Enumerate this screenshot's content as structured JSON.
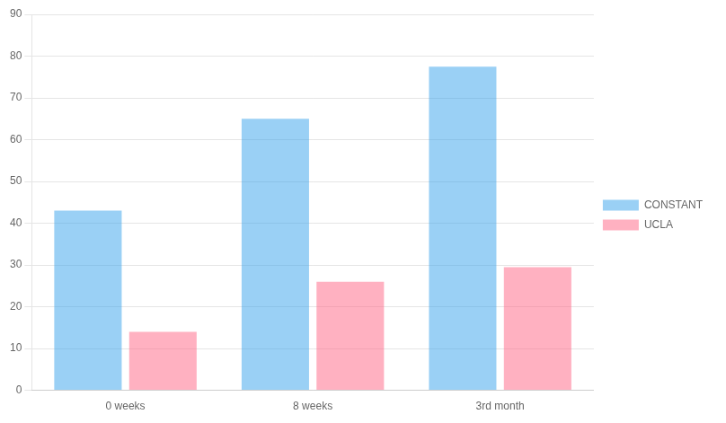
{
  "chart_data": {
    "type": "bar",
    "categories": [
      "0 weeks",
      "8 weeks",
      "3rd month"
    ],
    "series": [
      {
        "name": "CONSTANT",
        "values": [
          43,
          65,
          77.5
        ]
      },
      {
        "name": "UCLA",
        "values": [
          14,
          26,
          29.5
        ]
      }
    ],
    "ylim": [
      0,
      90
    ],
    "yticks": [
      0,
      10,
      20,
      30,
      40,
      50,
      60,
      70,
      80,
      90
    ],
    "grid": true,
    "legend": "right"
  }
}
